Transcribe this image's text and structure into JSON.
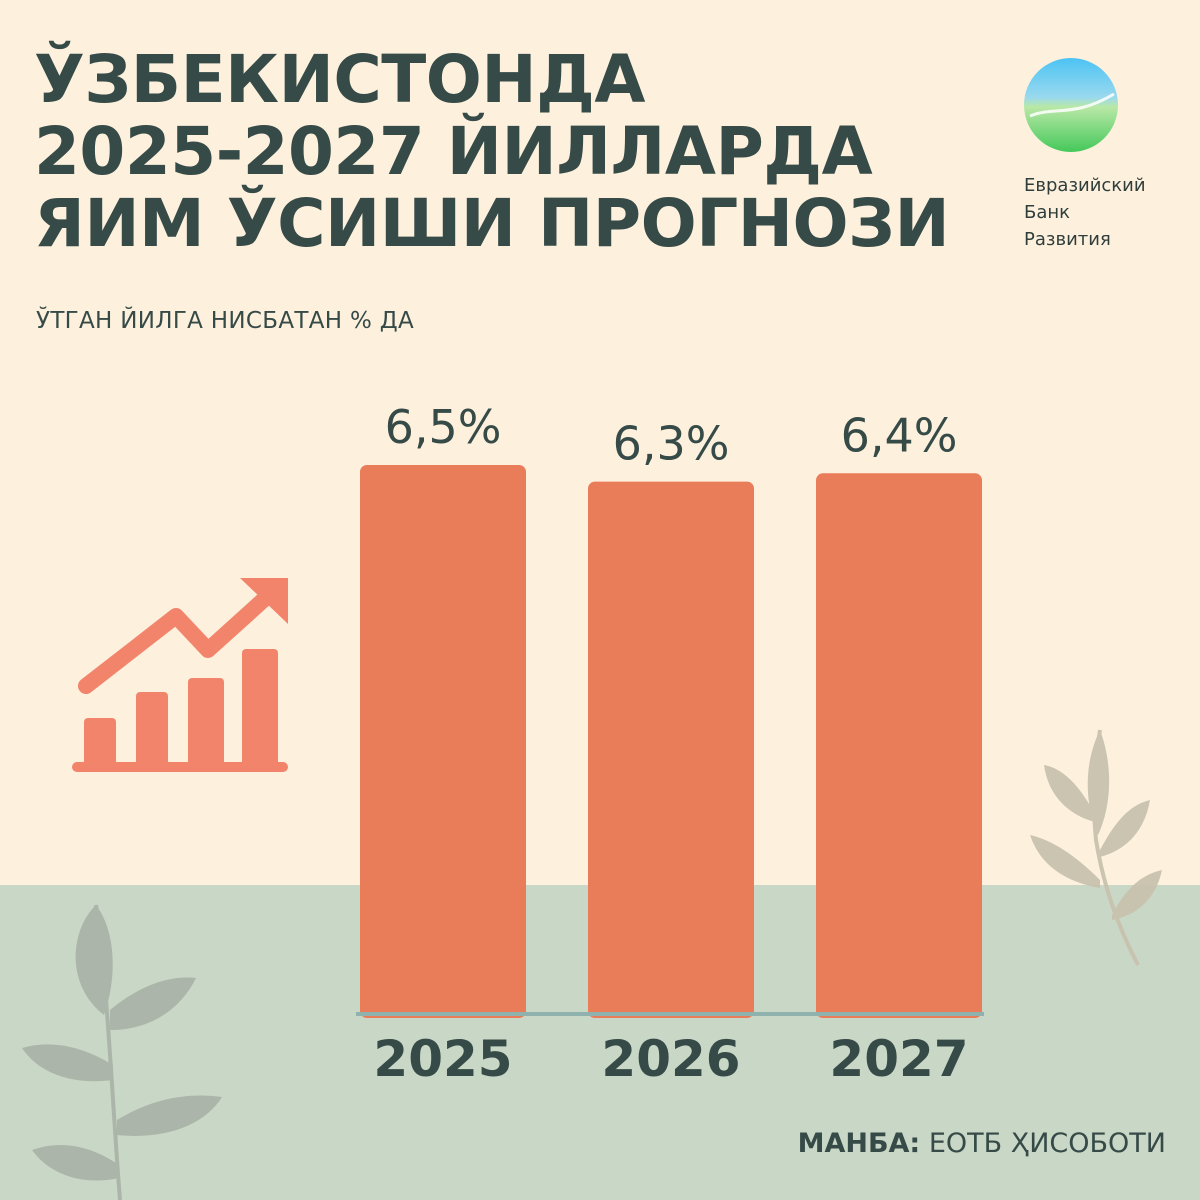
{
  "title_lines": [
    "ЎЗБЕКИСТОНДА",
    "2025-2027 ЙИЛЛАРДА",
    "ЯИМ ЎСИШИ ПРОГНОЗИ"
  ],
  "subtitle": "ЎТГАН ЙИЛГА НИСБАТАН % ДА",
  "logo": {
    "lines": [
      "Евразийский",
      "Банк",
      "Развития"
    ]
  },
  "source": {
    "label": "МАНБА:",
    "text": "ЕОТБ ҲИСОБОТИ"
  },
  "colors": {
    "bar": "#e97c59",
    "text": "#364a47",
    "axis": "#8fb2ae",
    "icon": "#f3846c",
    "background_top": "#fdf1de",
    "background_bottom": "#c9d7c6"
  },
  "chart_data": {
    "type": "bar",
    "categories": [
      "2025",
      "2026",
      "2027"
    ],
    "values": [
      6.5,
      6.3,
      6.4
    ],
    "value_labels": [
      "6,5%",
      "6,3%",
      "6,4%"
    ],
    "ylabel": "ЎТГАН ЙИЛГА НИСБАТАН % ДА",
    "grid": false,
    "legend": "none"
  }
}
